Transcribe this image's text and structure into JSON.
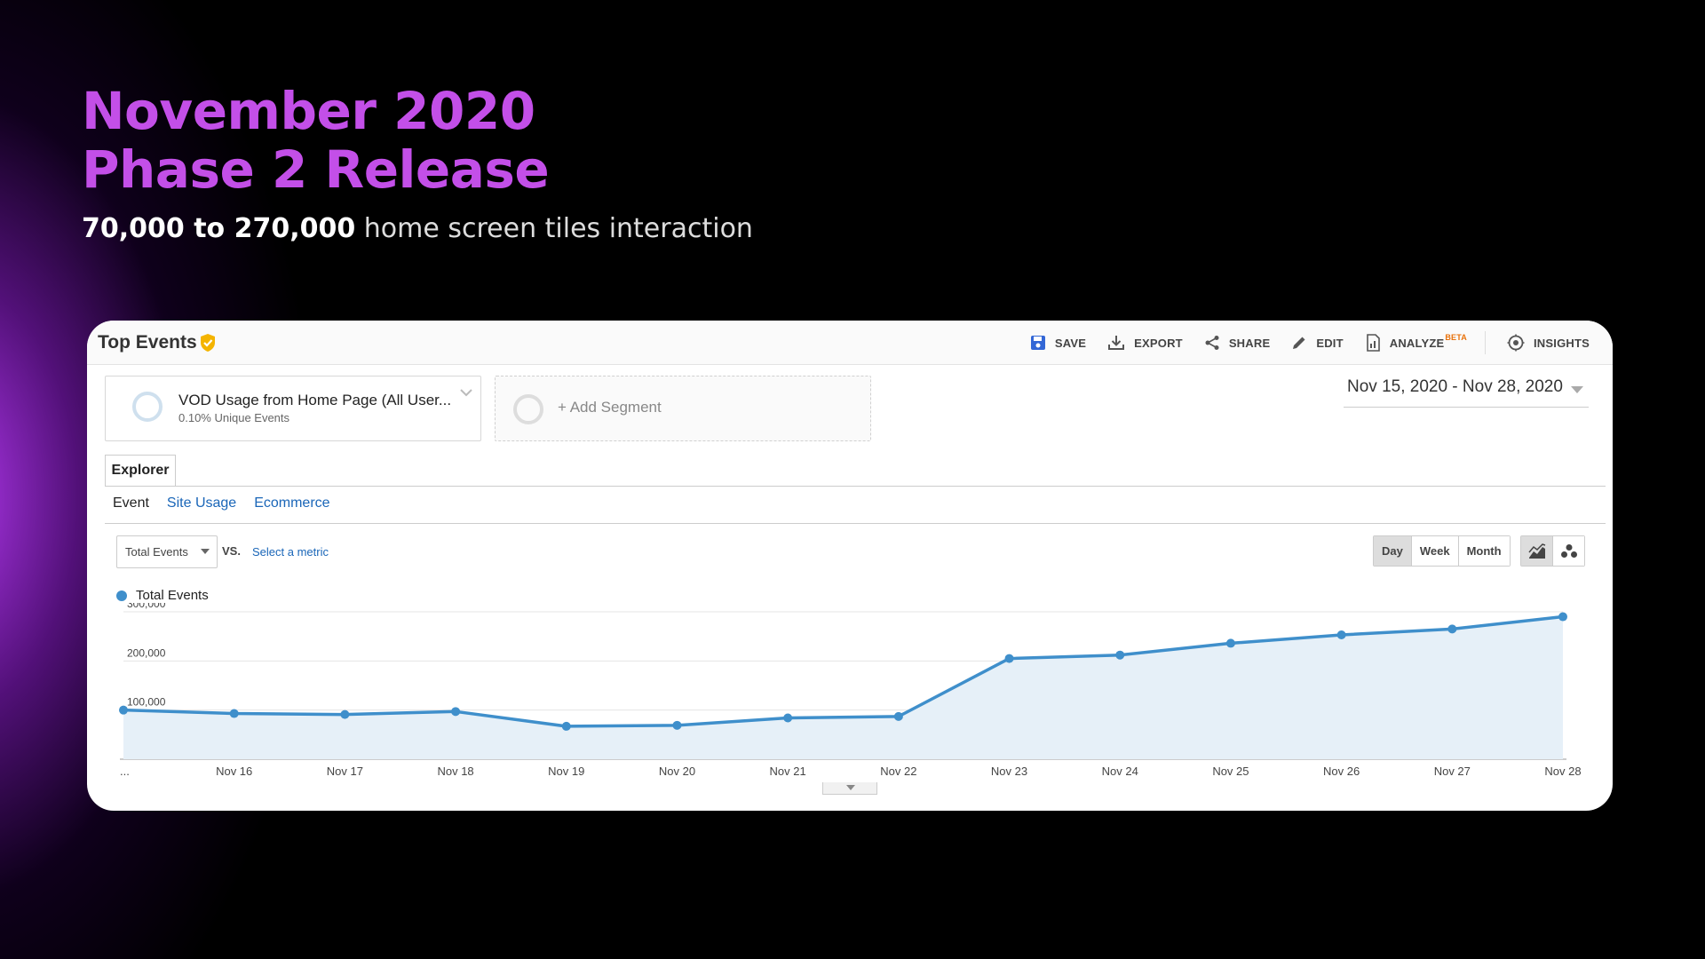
{
  "slide": {
    "title_line1": "November 2020",
    "title_line2": "Phase 2 Release",
    "subtitle_bold": "70,000 to 270,000",
    "subtitle_rest": " home screen tiles interaction"
  },
  "report": {
    "title": "Top Events",
    "toolbar": {
      "save": "SAVE",
      "export": "EXPORT",
      "share": "SHARE",
      "edit": "EDIT",
      "analyze": "ANALYZE",
      "analyze_badge": "BETA",
      "insights": "INSIGHTS"
    },
    "segments": {
      "primary_name": "VOD Usage from Home Page (All User...",
      "primary_sub": "0.10% Unique Events",
      "add_label": "+ Add Segment"
    },
    "date_range": "Nov 15, 2020 - Nov 28, 2020",
    "tab": "Explorer",
    "subtabs": [
      "Event",
      "Site Usage",
      "Ecommerce"
    ],
    "metric": "Total Events",
    "vs": "VS.",
    "select_metric": "Select a metric",
    "periods": [
      "Day",
      "Week",
      "Month"
    ],
    "legend": "Total Events"
  },
  "colors": {
    "accent": "#c34fe8",
    "series": "#3f8fcb",
    "area": "#e6f0f8",
    "link": "#1a66b8"
  },
  "chart_data": {
    "type": "area",
    "series": [
      {
        "name": "Total Events",
        "values": [
          100000,
          93000,
          91000,
          97000,
          67000,
          69000,
          84000,
          87000,
          205000,
          212000,
          236000,
          253000,
          265000,
          290000
        ]
      }
    ],
    "categories": [
      "Nov 15",
      "Nov 16",
      "Nov 17",
      "Nov 18",
      "Nov 19",
      "Nov 20",
      "Nov 21",
      "Nov 22",
      "Nov 23",
      "Nov 24",
      "Nov 25",
      "Nov 26",
      "Nov 27",
      "Nov 28"
    ],
    "x_tick_labels": [
      "...",
      "Nov 16",
      "Nov 17",
      "Nov 18",
      "Nov 19",
      "Nov 20",
      "Nov 21",
      "Nov 22",
      "Nov 23",
      "Nov 24",
      "Nov 25",
      "Nov 26",
      "Nov 27",
      "Nov 28"
    ],
    "y_ticks": [
      100000,
      200000,
      300000
    ],
    "y_tick_labels": [
      "100,000",
      "200,000",
      "300,000"
    ],
    "ylim": [
      0,
      300000
    ],
    "grid": true
  }
}
